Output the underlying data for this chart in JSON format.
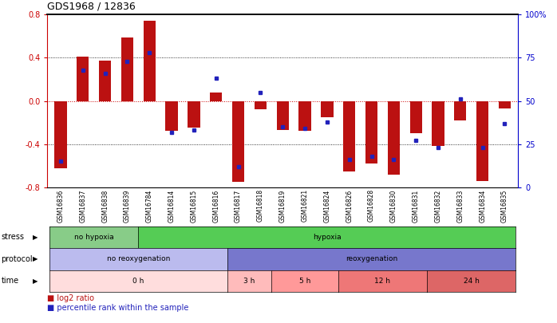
{
  "title": "GDS1968 / 12836",
  "samples": [
    "GSM16836",
    "GSM16837",
    "GSM16838",
    "GSM16839",
    "GSM16784",
    "GSM16814",
    "GSM16815",
    "GSM16816",
    "GSM16817",
    "GSM16818",
    "GSM16819",
    "GSM16821",
    "GSM16824",
    "GSM16826",
    "GSM16828",
    "GSM16830",
    "GSM16831",
    "GSM16832",
    "GSM16833",
    "GSM16834",
    "GSM16835"
  ],
  "log2_ratio": [
    -0.62,
    0.41,
    0.37,
    0.59,
    0.74,
    -0.28,
    -0.25,
    0.08,
    -0.75,
    -0.08,
    -0.27,
    -0.28,
    -0.15,
    -0.65,
    -0.58,
    -0.68,
    -0.3,
    -0.42,
    -0.18,
    -0.74,
    -0.07
  ],
  "percentile": [
    15,
    68,
    66,
    73,
    78,
    32,
    33,
    63,
    12,
    55,
    35,
    34,
    38,
    16,
    18,
    16,
    27,
    23,
    51,
    23,
    37
  ],
  "bar_color": "#bb1111",
  "dot_color": "#2222bb",
  "bg_color": "#ffffff",
  "ylim": [
    -0.8,
    0.8
  ],
  "y2lim": [
    0,
    100
  ],
  "yticks": [
    -0.8,
    -0.4,
    0.0,
    0.4,
    0.8
  ],
  "y2ticks": [
    0,
    25,
    50,
    75,
    100
  ],
  "stress_groups": [
    {
      "label": "no hypoxia",
      "start": 0,
      "end": 4,
      "color": "#88cc88"
    },
    {
      "label": "hypoxia",
      "start": 4,
      "end": 21,
      "color": "#55cc55"
    }
  ],
  "protocol_groups": [
    {
      "label": "no reoxygenation",
      "start": 0,
      "end": 8,
      "color": "#bbbbee"
    },
    {
      "label": "reoxygenation",
      "start": 8,
      "end": 21,
      "color": "#7777cc"
    }
  ],
  "time_groups": [
    {
      "label": "0 h",
      "start": 0,
      "end": 8,
      "color": "#ffdddd"
    },
    {
      "label": "3 h",
      "start": 8,
      "end": 10,
      "color": "#ffbbbb"
    },
    {
      "label": "5 h",
      "start": 10,
      "end": 13,
      "color": "#ff9999"
    },
    {
      "label": "12 h",
      "start": 13,
      "end": 17,
      "color": "#ee7777"
    },
    {
      "label": "24 h",
      "start": 17,
      "end": 21,
      "color": "#dd6666"
    }
  ],
  "zero_line_color": "#cc0000",
  "left_label_color": "#cc0000",
  "right_label_color": "#0000cc",
  "xtick_bg": "#cccccc"
}
